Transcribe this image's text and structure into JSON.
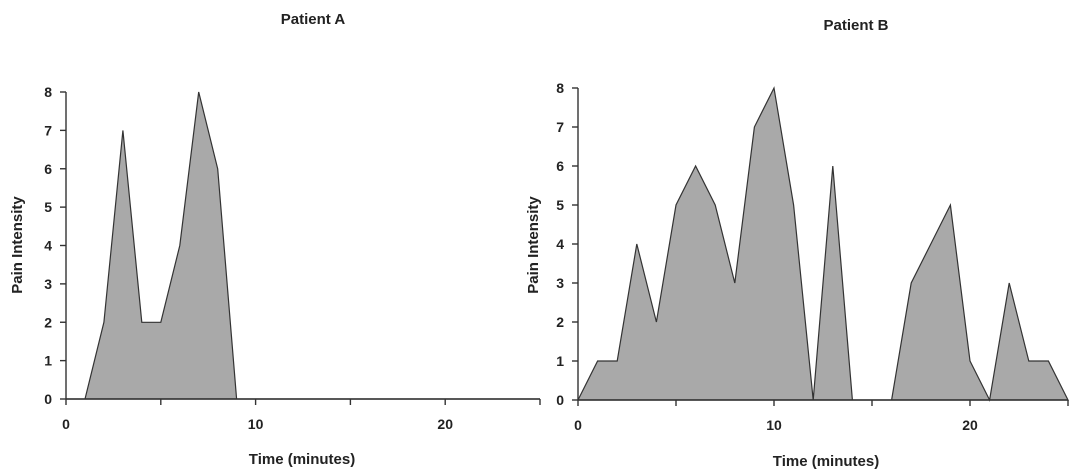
{
  "chart_data": [
    {
      "type": "area",
      "title": "Patient A",
      "xlabel": "Time (minutes)",
      "ylabel": "Pain Intensity",
      "xlim": [
        0,
        25
      ],
      "ylim": [
        0,
        8
      ],
      "xticks": [
        0,
        10,
        20
      ],
      "yticks": [
        0,
        1,
        2,
        3,
        4,
        5,
        6,
        7,
        8
      ],
      "grid": false,
      "x": [
        0,
        1,
        2,
        3,
        4,
        5,
        6,
        7,
        8,
        9,
        10,
        11,
        12,
        13,
        14,
        15,
        16,
        17,
        18,
        19,
        20,
        21,
        22,
        23,
        24,
        25
      ],
      "y": [
        0,
        0,
        2,
        7,
        2,
        2,
        4,
        8,
        6,
        0,
        0,
        0,
        0,
        0,
        0,
        0,
        0,
        0,
        0,
        0,
        0,
        0,
        0,
        0,
        0,
        0
      ]
    },
    {
      "type": "area",
      "title": "Patient B",
      "xlabel": "Time (minutes)",
      "ylabel": "Pain Intensity",
      "xlim": [
        0,
        25
      ],
      "ylim": [
        0,
        8
      ],
      "xticks": [
        0,
        10,
        20
      ],
      "yticks": [
        0,
        1,
        2,
        3,
        4,
        5,
        6,
        7,
        8
      ],
      "grid": false,
      "x": [
        0,
        1,
        2,
        3,
        4,
        5,
        6,
        7,
        8,
        9,
        10,
        11,
        12,
        13,
        14,
        15,
        16,
        17,
        18,
        19,
        20,
        21,
        22,
        23,
        24,
        25
      ],
      "y": [
        0,
        1,
        1,
        4,
        2,
        5,
        6,
        5,
        3,
        7,
        8,
        5,
        0,
        6,
        0,
        0,
        0,
        3,
        4,
        5,
        1,
        0,
        3,
        1,
        1,
        0
      ]
    }
  ]
}
